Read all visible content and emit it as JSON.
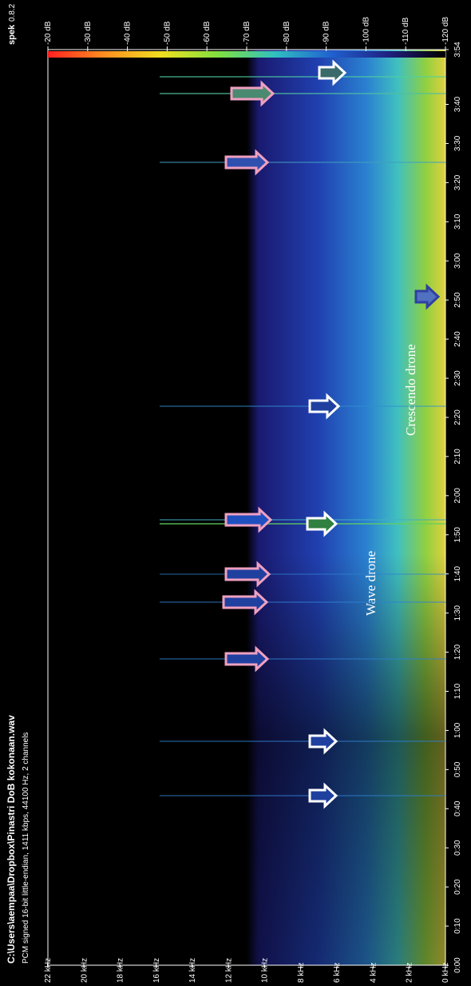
{
  "app": "spek",
  "version": "0.8.2",
  "chart_data": {
    "type": "spectrogram",
    "title": "C:\\Users\\aempaa\\Dropbox\\Pinastri DoB kokonaan.wav",
    "subtitle": "PCM signed 16-bit little-endian, 1411 kbps, 44100 Hz, 2 channels",
    "xlim": [
      0,
      234
    ],
    "xticks": [
      {
        "value": 0,
        "label": "0:00"
      },
      {
        "value": 10,
        "label": "0:10"
      },
      {
        "value": 20,
        "label": "0:20"
      },
      {
        "value": 30,
        "label": "0:30"
      },
      {
        "value": 40,
        "label": "0:40"
      },
      {
        "value": 50,
        "label": "0:50"
      },
      {
        "value": 60,
        "label": "1:00"
      },
      {
        "value": 70,
        "label": "1:10"
      },
      {
        "value": 80,
        "label": "1:20"
      },
      {
        "value": 90,
        "label": "1:30"
      },
      {
        "value": 100,
        "label": "1:40"
      },
      {
        "value": 110,
        "label": "1:50"
      },
      {
        "value": 120,
        "label": "2:00"
      },
      {
        "value": 130,
        "label": "2:10"
      },
      {
        "value": 140,
        "label": "2:20"
      },
      {
        "value": 150,
        "label": "2:30"
      },
      {
        "value": 160,
        "label": "2:40"
      },
      {
        "value": 170,
        "label": "2:50"
      },
      {
        "value": 180,
        "label": "3:00"
      },
      {
        "value": 190,
        "label": "3:10"
      },
      {
        "value": 200,
        "label": "3:20"
      },
      {
        "value": 210,
        "label": "3:30"
      },
      {
        "value": 220,
        "label": "3:40"
      },
      {
        "value": 234,
        "label": "3:54"
      }
    ],
    "ylim": [
      0,
      22
    ],
    "yticks": [
      {
        "value": 0,
        "label": "0 kHz"
      },
      {
        "value": 2,
        "label": "2 kHz"
      },
      {
        "value": 4,
        "label": "4 kHz"
      },
      {
        "value": 6,
        "label": "6 kHz"
      },
      {
        "value": 8,
        "label": "8 kHz"
      },
      {
        "value": 10,
        "label": "10 kHz"
      },
      {
        "value": 12,
        "label": "12 kHz"
      },
      {
        "value": 14,
        "label": "14 kHz"
      },
      {
        "value": 16,
        "label": "16 kHz"
      },
      {
        "value": 18,
        "label": "18 kHz"
      },
      {
        "value": 20,
        "label": "20 kHz"
      },
      {
        "value": 22,
        "label": "22 kHz"
      }
    ],
    "zlim": [
      -120,
      -20
    ],
    "zticks": [
      {
        "value": -20,
        "label": "-20 dB"
      },
      {
        "value": -30,
        "label": "-30 dB"
      },
      {
        "value": -40,
        "label": "-40 dB"
      },
      {
        "value": -50,
        "label": "-50 dB"
      },
      {
        "value": -60,
        "label": "-60 dB"
      },
      {
        "value": -70,
        "label": "-70 dB"
      },
      {
        "value": -80,
        "label": "-80 dB"
      },
      {
        "value": -90,
        "label": "-90 dB"
      },
      {
        "value": -100,
        "label": "-100 dB"
      },
      {
        "value": -110,
        "label": "-110 dB"
      },
      {
        "value": -120,
        "label": "-120 dB"
      }
    ],
    "colormap": [
      "#ff2020",
      "#ff9020",
      "#f0e020",
      "#80e040",
      "#30c0c0",
      "#2060d0",
      "#202080",
      "#000000"
    ],
    "annotations": [
      "Wave drone",
      "Crescendo drone"
    ]
  }
}
